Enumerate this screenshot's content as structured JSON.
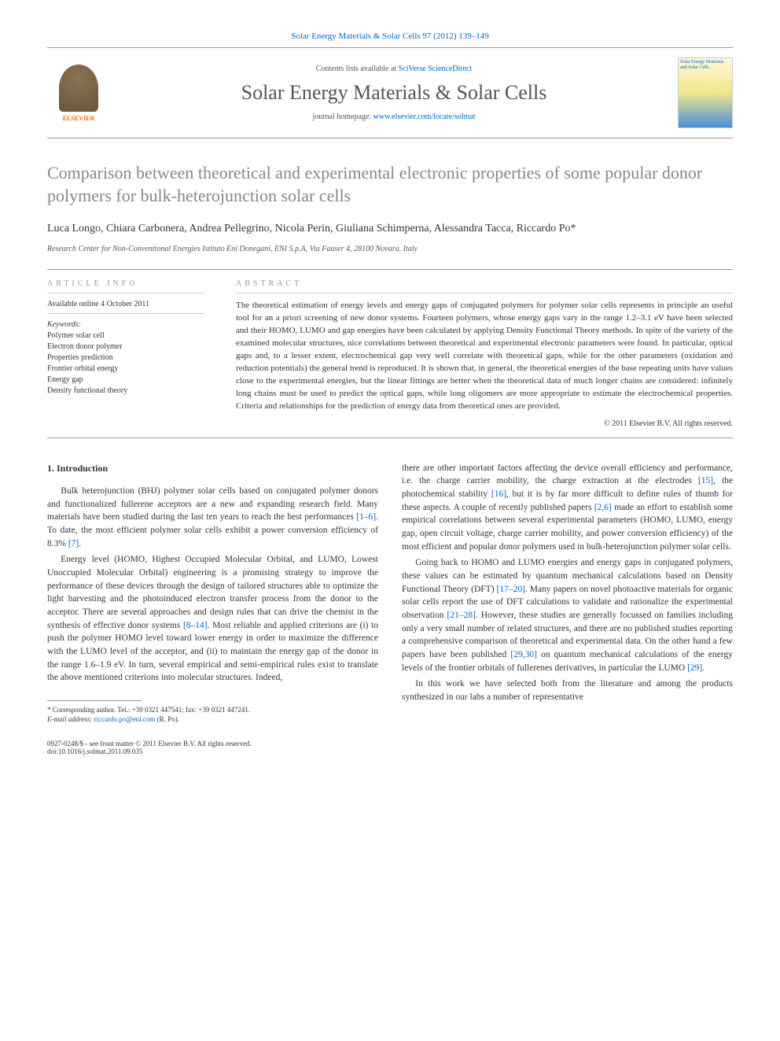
{
  "header": {
    "top_link": "Solar Energy Materials & Solar Cells 97 (2012) 139–149",
    "contents_text": "Contents lists available at ",
    "contents_link": "SciVerse ScienceDirect",
    "journal_title": "Solar Energy Materials & Solar Cells",
    "homepage_text": "journal homepage: ",
    "homepage_link": "www.elsevier.com/locate/solmat",
    "publisher_name": "ELSEVIER",
    "cover_title": "Solar Energy Materials and Solar Cells"
  },
  "article": {
    "title": "Comparison between theoretical and experimental electronic properties of some popular donor polymers for bulk-heterojunction solar cells",
    "authors": "Luca Longo, Chiara Carbonera, Andrea Pellegrino, Nicola Perin, Giuliana Schimperna, Alessandra Tacca, Riccardo Po",
    "corresponding_marker": "*",
    "affiliation": "Research Center for Non-Conventional Energies Istituto Eni Donegani, ENI S.p.A, Via Fauser 4, 28100 Novara, Italy"
  },
  "info": {
    "heading": "ARTICLE INFO",
    "available": "Available online 4 October 2011",
    "keywords_label": "Keywords:",
    "keywords": [
      "Polymer solar cell",
      "Electron donor polymer",
      "Properties prediction",
      "Frontier orbital energy",
      "Energy gap",
      "Density functional theory"
    ]
  },
  "abstract": {
    "heading": "ABSTRACT",
    "text": "The theoretical estimation of energy levels and energy gaps of conjugated polymers for polymer solar cells represents in principle an useful tool for an a priori screening of new donor systems. Fourteen polymers, whose energy gaps vary in the range 1.2–3.1 eV have been selected and their HOMO, LUMO and gap energies have been calculated by applying Density Functional Theory methods. In spite of the variety of the examined molecular structures, nice correlations between theoretical and experimental electronic parameters were found. In particular, optical gaps and, to a lesser extent, electrochemical gap very well correlate with theoretical gaps, while for the other parameters (oxidation and reduction potentials) the general trend is reproduced. It is shown that, in general, the theoretical energies of the base repeating units have values close to the experimental energies, but the linear fittings are better when the theoretical data of much longer chains are considered: infinitely long chains must be used to predict the optical gaps, while long oligomers are more appropriate to estimate the electrochemical properties. Criteria and relationships for the prediction of energy data from theoretical ones are provided.",
    "copyright": "© 2011 Elsevier B.V. All rights reserved."
  },
  "body": {
    "section1_heading": "1. Introduction",
    "col1_p1_a": "Bulk heterojunction (BHJ) polymer solar cells based on conjugated polymer donors and functionalized fullerene acceptors are a new and expanding research field. Many materials have been studied during the last ten years to reach the best performances ",
    "col1_p1_ref1": "[1–6]",
    "col1_p1_b": ". To date, the most efficient polymer solar cells exhibit a power conversion efficiency of 8.3% ",
    "col1_p1_ref2": "[7]",
    "col1_p1_c": ".",
    "col1_p2_a": "Energy level (HOMO, Highest Occupied Molecular Orbital, and LUMO, Lowest Unoccupied Molecular Orbital) engineering is a promising strategy to improve the performance of these devices through the design of tailored structures able to optimize the light harvesting and the photoinduced electron transfer process from the donor to the acceptor. There are several approaches and design rules that can drive the chemist in the synthesis of effective donor systems ",
    "col1_p2_ref1": "[8–14]",
    "col1_p2_b": ". Most reliable and applied criterions are (i) to push the polymer HOMO level toward lower energy in order to maximize the difference with the LUMO level of the acceptor, and (ii) to maintain the energy gap of the donor in the range 1.6–1.9 eV. In turn, several empirical and semi-empirical rules exist to translate the above mentioned criterions into molecular structures. Indeed,",
    "col2_p1_a": "there are other important factors affecting the device overall efficiency and performance, i.e. the charge carrier mobility, the charge extraction at the electrodes ",
    "col2_p1_ref1": "[15]",
    "col2_p1_b": ", the photochemical stability ",
    "col2_p1_ref2": "[16]",
    "col2_p1_c": ", but it is by far more difficult to define rules of thumb for these aspects. A couple of recently published papers ",
    "col2_p1_ref3": "[2,6]",
    "col2_p1_d": " made an effort to establish some empirical correlations between several experimental parameters (HOMO, LUMO, energy gap, open circuit voltage, charge carrier mobility, and power conversion efficiency) of the most efficient and popular donor polymers used in bulk-heterojunction polymer solar cells.",
    "col2_p2_a": "Going back to HOMO and LUMO energies and energy gaps in conjugated polymers, these values can be estimated by quantum mechanical calculations based on Density Functional Theory (DFT) ",
    "col2_p2_ref1": "[17–20]",
    "col2_p2_b": ". Many papers on novel photoactive materials for organic solar cells report the use of DFT calculations to validate and rationalize the experimental observation ",
    "col2_p2_ref2": "[21–28]",
    "col2_p2_c": ". However, these studies are generally focussed on families including only a very small number of related structures, and there are no published studies reporting a comprehensive comparison of theoretical and experimental data. On the other hand a few papers have been published ",
    "col2_p2_ref3": "[29,30]",
    "col2_p2_d": " on quantum mechanical calculations of the energy levels of the frontier orbitals of fullerenes derivatives, in particular the LUMO ",
    "col2_p2_ref4": "[29]",
    "col2_p2_e": ".",
    "col2_p3": "In this work we have selected both from the literature and among the products synthesized in our labs a number of representative"
  },
  "footnote": {
    "corresponding": "* Corresponding author. Tel.: +39 0321 447541; fax: +39 0321 447241.",
    "email_label": "E-mail address: ",
    "email": "riccardo.po@eni.com",
    "email_name": " (R. Po)."
  },
  "footer": {
    "left1": "0927-0248/$ - see front matter © 2011 Elsevier B.V. All rights reserved.",
    "left2": "doi:10.1016/j.solmat.2011.09.035"
  }
}
